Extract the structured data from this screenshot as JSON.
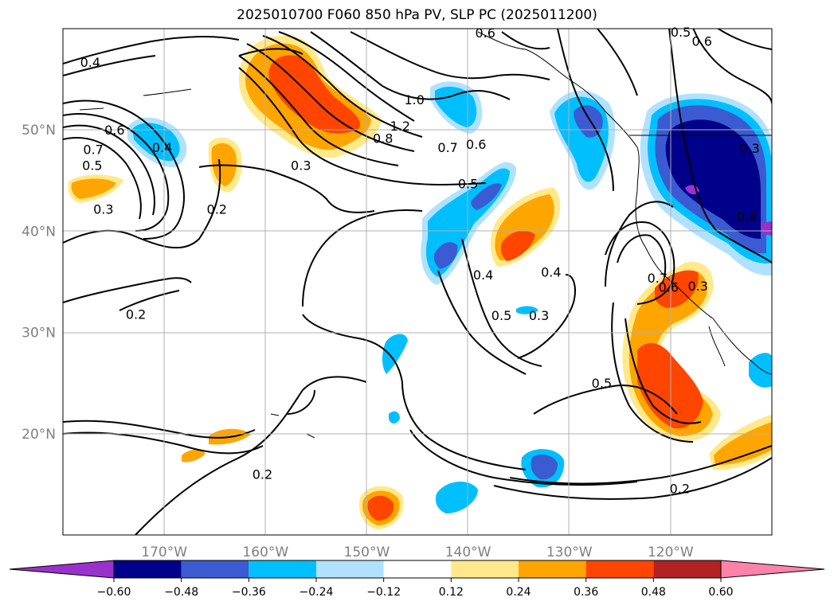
{
  "title": "2025010700 F060 850 hPa PV, SLP PC (2025011200)",
  "map": {
    "lon_range": [
      -180,
      -110
    ],
    "lat_range": [
      10,
      60
    ],
    "lon_ticks": [
      {
        "value": -170,
        "label": "170°W"
      },
      {
        "value": -160,
        "label": "160°W"
      },
      {
        "value": -150,
        "label": "150°W"
      },
      {
        "value": -140,
        "label": "140°W"
      },
      {
        "value": -130,
        "label": "130°W"
      },
      {
        "value": -120,
        "label": "120°W"
      }
    ],
    "lat_ticks": [
      {
        "value": 50,
        "label": "50°N"
      },
      {
        "value": 40,
        "label": "40°N"
      },
      {
        "value": 30,
        "label": "30°N"
      },
      {
        "value": 20,
        "label": "20°N"
      }
    ],
    "grid": true
  },
  "colorbar": {
    "levels": [
      -0.6,
      -0.48,
      -0.36,
      -0.24,
      -0.12,
      0.12,
      0.24,
      0.36,
      0.48,
      0.6
    ],
    "colors": [
      "#9932cc",
      "#00008b",
      "#3a5bd2",
      "#00bfff",
      "#b0e2ff",
      "#ffffff",
      "#ffe98a",
      "#ffa500",
      "#ff4500",
      "#b22222",
      "#ff82ab"
    ],
    "tick_labels": [
      "−0.60",
      "−0.48",
      "−0.36",
      "−0.24",
      "−0.12",
      "0.12",
      "0.24",
      "0.36",
      "0.48",
      "0.60"
    ]
  },
  "contour_labels": [
    {
      "text": "0.4",
      "lon": -177.3,
      "lat": 56.7
    },
    {
      "text": "0.6",
      "lon": -174.9,
      "lat": 50.0
    },
    {
      "text": "0.7",
      "lon": -177.0,
      "lat": 48.1
    },
    {
      "text": "0.5",
      "lon": -177.1,
      "lat": 46.5
    },
    {
      "text": "0.3",
      "lon": -176.0,
      "lat": 42.2
    },
    {
      "text": "0.4",
      "lon": -170.2,
      "lat": 48.3
    },
    {
      "text": "0.2",
      "lon": -164.8,
      "lat": 42.2
    },
    {
      "text": "0.2",
      "lon": -172.8,
      "lat": 31.8
    },
    {
      "text": "0.3",
      "lon": -156.5,
      "lat": 46.5
    },
    {
      "text": "0.8",
      "lon": -148.4,
      "lat": 49.2
    },
    {
      "text": "1.2",
      "lon": -146.7,
      "lat": 50.4
    },
    {
      "text": "1.0",
      "lon": -145.3,
      "lat": 53.0
    },
    {
      "text": "0.7",
      "lon": -142.0,
      "lat": 48.3
    },
    {
      "text": "0.6",
      "lon": -139.2,
      "lat": 48.6
    },
    {
      "text": "0.5",
      "lon": -140.0,
      "lat": 44.7
    },
    {
      "text": "0.5",
      "lon": -119.0,
      "lat": 59.7
    },
    {
      "text": "0.6",
      "lon": -116.9,
      "lat": 58.8
    },
    {
      "text": "0.6",
      "lon": -138.3,
      "lat": 59.6
    },
    {
      "text": "0.4",
      "lon": -138.5,
      "lat": 35.7
    },
    {
      "text": "0.5",
      "lon": -136.7,
      "lat": 31.7
    },
    {
      "text": "0.3",
      "lon": -133.0,
      "lat": 31.7
    },
    {
      "text": "0.4",
      "lon": -131.8,
      "lat": 36.0
    },
    {
      "text": "0.5",
      "lon": -126.8,
      "lat": 25.0
    },
    {
      "text": "0.2",
      "lon": -119.1,
      "lat": 14.6
    },
    {
      "text": "0.2",
      "lon": -160.3,
      "lat": 16.0
    },
    {
      "text": "0.7",
      "lon": -121.3,
      "lat": 35.4
    },
    {
      "text": "0.6",
      "lon": -120.2,
      "lat": 34.5
    },
    {
      "text": "0.3",
      "lon": -117.3,
      "lat": 34.6
    },
    {
      "text": "0.3",
      "lon": -112.2,
      "lat": 48.2
    },
    {
      "text": "0.4",
      "lon": -112.5,
      "lat": 41.5
    }
  ]
}
